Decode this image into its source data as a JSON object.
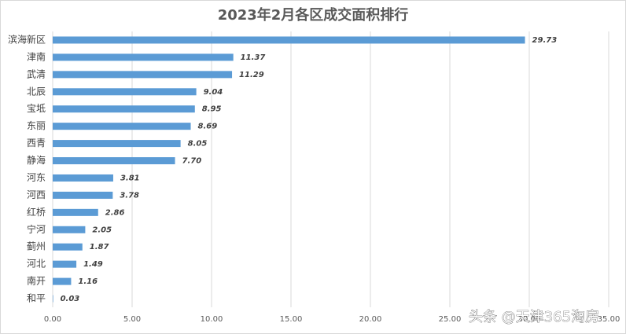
{
  "chart_data": {
    "type": "bar",
    "orientation": "horizontal",
    "title": "2023年2月各区成交面积排行",
    "categories": [
      "滨海新区",
      "津南",
      "武清",
      "北辰",
      "宝坻",
      "东丽",
      "西青",
      "静海",
      "河东",
      "河西",
      "红桥",
      "宁河",
      "蓟州",
      "河北",
      "南开",
      "和平"
    ],
    "values": [
      29.73,
      11.37,
      11.29,
      9.04,
      8.95,
      8.69,
      8.05,
      7.7,
      3.81,
      3.78,
      2.86,
      2.05,
      1.87,
      1.49,
      1.16,
      0.03
    ],
    "value_labels": [
      "29.73",
      "11.37",
      "11.29",
      "9.04",
      "8.95",
      "8.69",
      "8.05",
      "7.70",
      "3.81",
      "3.78",
      "2.86",
      "2.05",
      "1.87",
      "1.49",
      "1.16",
      "0.03"
    ],
    "color": "#5b9bd5",
    "xlim": [
      0,
      35
    ],
    "xticks": [
      {
        "value": 0,
        "label": "0.00"
      },
      {
        "value": 5,
        "label": "5.00"
      },
      {
        "value": 10,
        "label": "10.00"
      },
      {
        "value": 15,
        "label": "15.00"
      },
      {
        "value": 20,
        "label": "20.00"
      },
      {
        "value": 25,
        "label": "25.00"
      },
      {
        "value": 30,
        "label": "30.00"
      },
      {
        "value": 35,
        "label": "35.00"
      }
    ],
    "grid": true,
    "watermark": "头条 @天津365淘房"
  }
}
